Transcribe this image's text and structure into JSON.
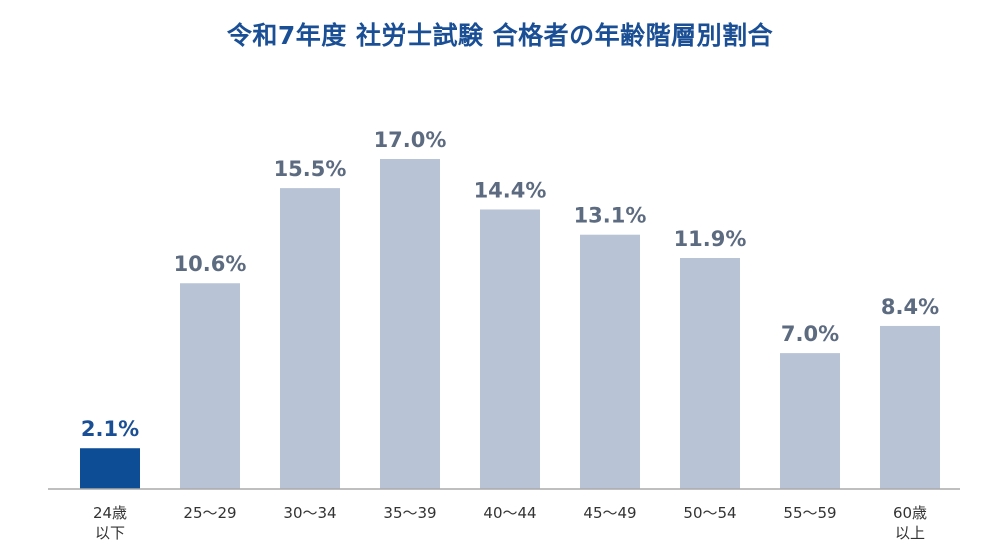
{
  "chart_data": {
    "type": "bar",
    "title": "令和7年度 社労士試験 合格者の年齢階層別割合",
    "xlabel": "",
    "ylabel": "",
    "categories": [
      "24歳\n以下",
      "25〜29",
      "30〜34",
      "35〜39",
      "40〜44",
      "45〜49",
      "50〜54",
      "55〜59",
      "60歳\n以上"
    ],
    "values": [
      2.1,
      10.6,
      15.5,
      17.0,
      14.4,
      13.1,
      11.9,
      7.0,
      8.4
    ],
    "data_labels": [
      "2.1%",
      "10.6%",
      "15.5%",
      "17.0%",
      "14.4%",
      "13.1%",
      "11.9%",
      "7.0%",
      "8.4%"
    ],
    "unit": "%",
    "ylim": [
      0,
      17.0
    ],
    "grid": false,
    "legend": "none",
    "colors": {
      "highlight": "#0d4d96",
      "bar": "#b8c4d6",
      "axis": "#aaaaaa",
      "title": "#1a4f95",
      "label": "#5d6b80",
      "highlight_label": "#1a4f95"
    },
    "highlight_index": 0
  }
}
